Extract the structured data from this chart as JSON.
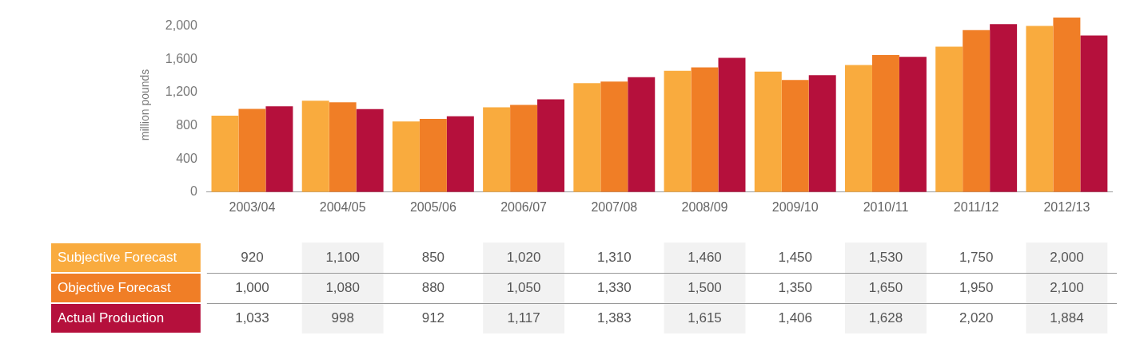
{
  "chart_data": {
    "type": "bar",
    "ylabel": "million pounds",
    "categories": [
      "2003/04",
      "2004/05",
      "2005/06",
      "2006/07",
      "2007/08",
      "2008/09",
      "2009/10",
      "2010/11",
      "2011/12",
      "2012/13"
    ],
    "series": [
      {
        "name": "Subjective Forecast",
        "color": "#f9ab3e",
        "values": [
          920,
          1100,
          850,
          1020,
          1310,
          1460,
          1450,
          1530,
          1750,
          2000
        ],
        "value_labels": [
          "920",
          "1,100",
          "850",
          "1,020",
          "1,310",
          "1,460",
          "1,450",
          "1,530",
          "1,750",
          "2,000"
        ]
      },
      {
        "name": "Objective Forecast",
        "color": "#f07e26",
        "values": [
          1000,
          1080,
          880,
          1050,
          1330,
          1500,
          1350,
          1650,
          1950,
          2100
        ],
        "value_labels": [
          "1,000",
          "1,080",
          "880",
          "1,050",
          "1,330",
          "1,500",
          "1,350",
          "1,650",
          "1,950",
          "2,100"
        ]
      },
      {
        "name": "Actual Production",
        "color": "#b5103c",
        "values": [
          1033,
          998,
          912,
          1117,
          1383,
          1615,
          1406,
          1628,
          2020,
          1884
        ],
        "value_labels": [
          "1,033",
          "998",
          "912",
          "1,117",
          "1,383",
          "1,615",
          "1,406",
          "1,628",
          "2,020",
          "1,884"
        ]
      }
    ],
    "ylim": [
      0,
      2100
    ],
    "yticks": [
      {
        "value": 0,
        "label": "0"
      },
      {
        "value": 400,
        "label": "400"
      },
      {
        "value": 800,
        "label": "800"
      },
      {
        "value": 1200,
        "label": "1,200"
      },
      {
        "value": 1600,
        "label": "1,600"
      },
      {
        "value": 2000,
        "label": "2,000"
      }
    ],
    "grid": false,
    "legend": "bottom left"
  }
}
